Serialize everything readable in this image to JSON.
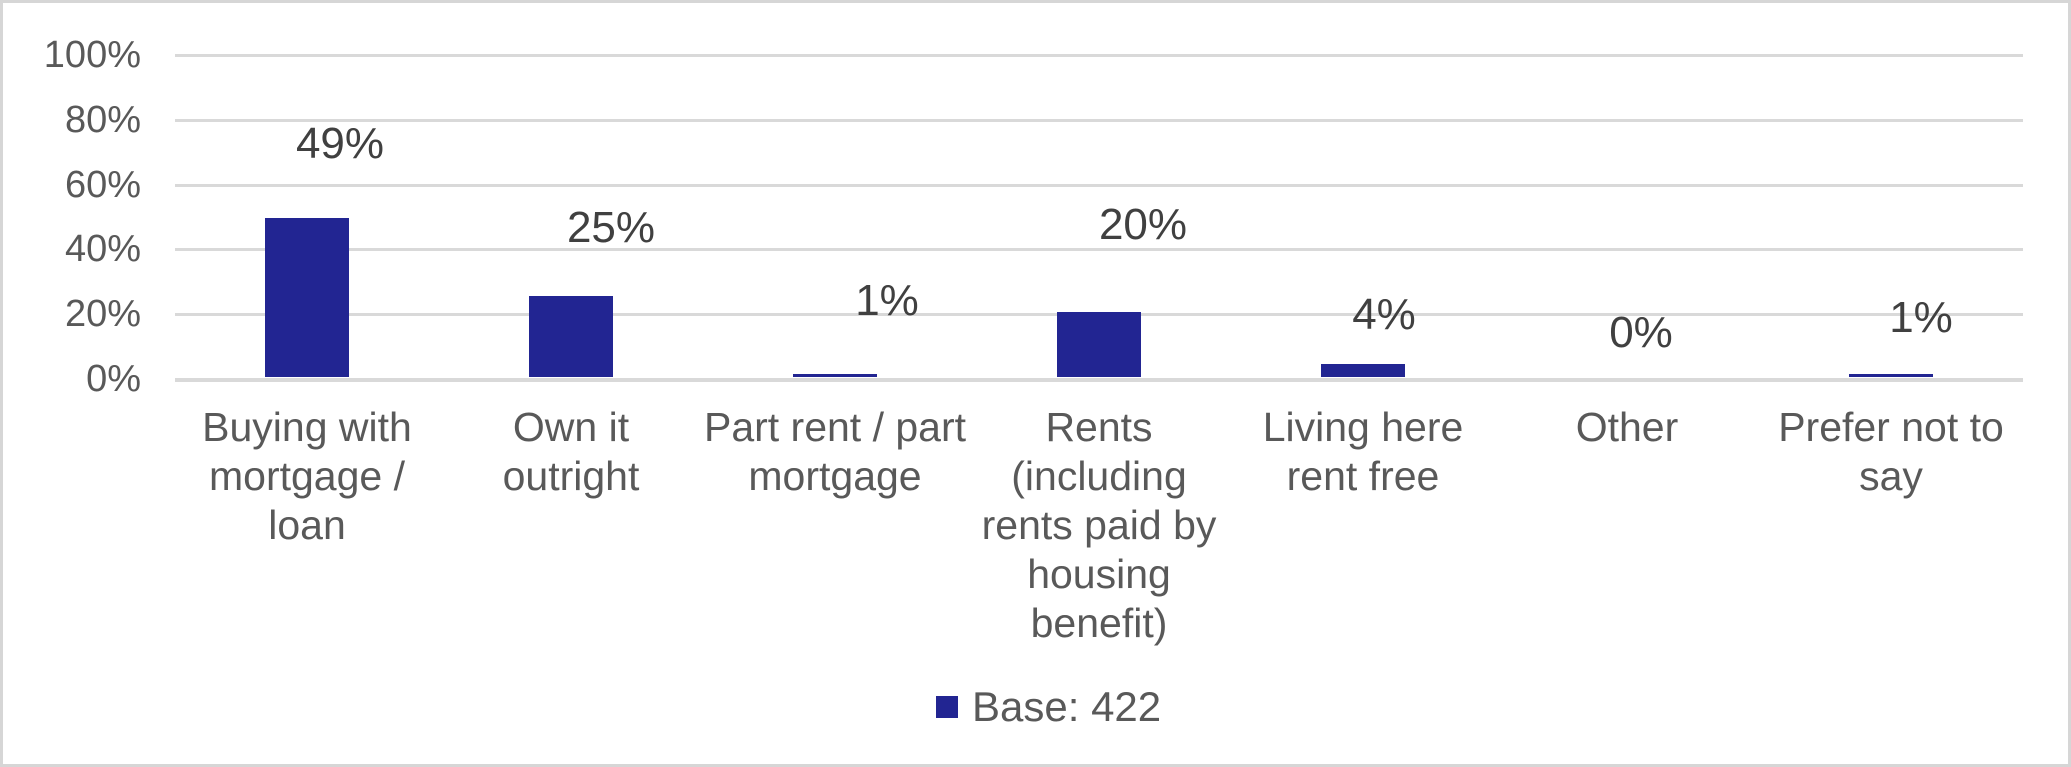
{
  "chart_data": {
    "type": "bar",
    "title": "",
    "categories": [
      "Buying with mortgage / loan",
      "Own it outright",
      "Part rent / part mortgage",
      "Rents (including rents paid by housing benefit)",
      "Living here rent free",
      "Other",
      "Prefer not to say"
    ],
    "category_display_lines": [
      "Buying with\nmortgage /\nloan",
      "Own it\noutright",
      "Part rent / part\nmortgage",
      "Rents\n(including\nrents paid by\nhousing\nbenefit)",
      "Living here\nrent free",
      "Other",
      "Prefer not to\nsay"
    ],
    "values": [
      49,
      25,
      1,
      20,
      4,
      0,
      1
    ],
    "data_labels": [
      "49%",
      "25%",
      "1%",
      "20%",
      "4%",
      "0%",
      "1%"
    ],
    "y_axis": {
      "tick_labels": [
        "100%",
        "80%",
        "60%",
        "40%",
        "20%",
        "0%"
      ],
      "tick_values": [
        100,
        80,
        60,
        40,
        20,
        0
      ],
      "range": [
        0,
        100
      ]
    },
    "grid": "horizontal-only",
    "legend": {
      "label": "Base: 422",
      "position": "bottom"
    },
    "colors": {
      "bar": "#222592",
      "gridline": "#d9d9d9",
      "axis_text": "#595959",
      "data_label_text": "#404040",
      "border": "#d6d6d6",
      "background": "#ffffff"
    }
  }
}
